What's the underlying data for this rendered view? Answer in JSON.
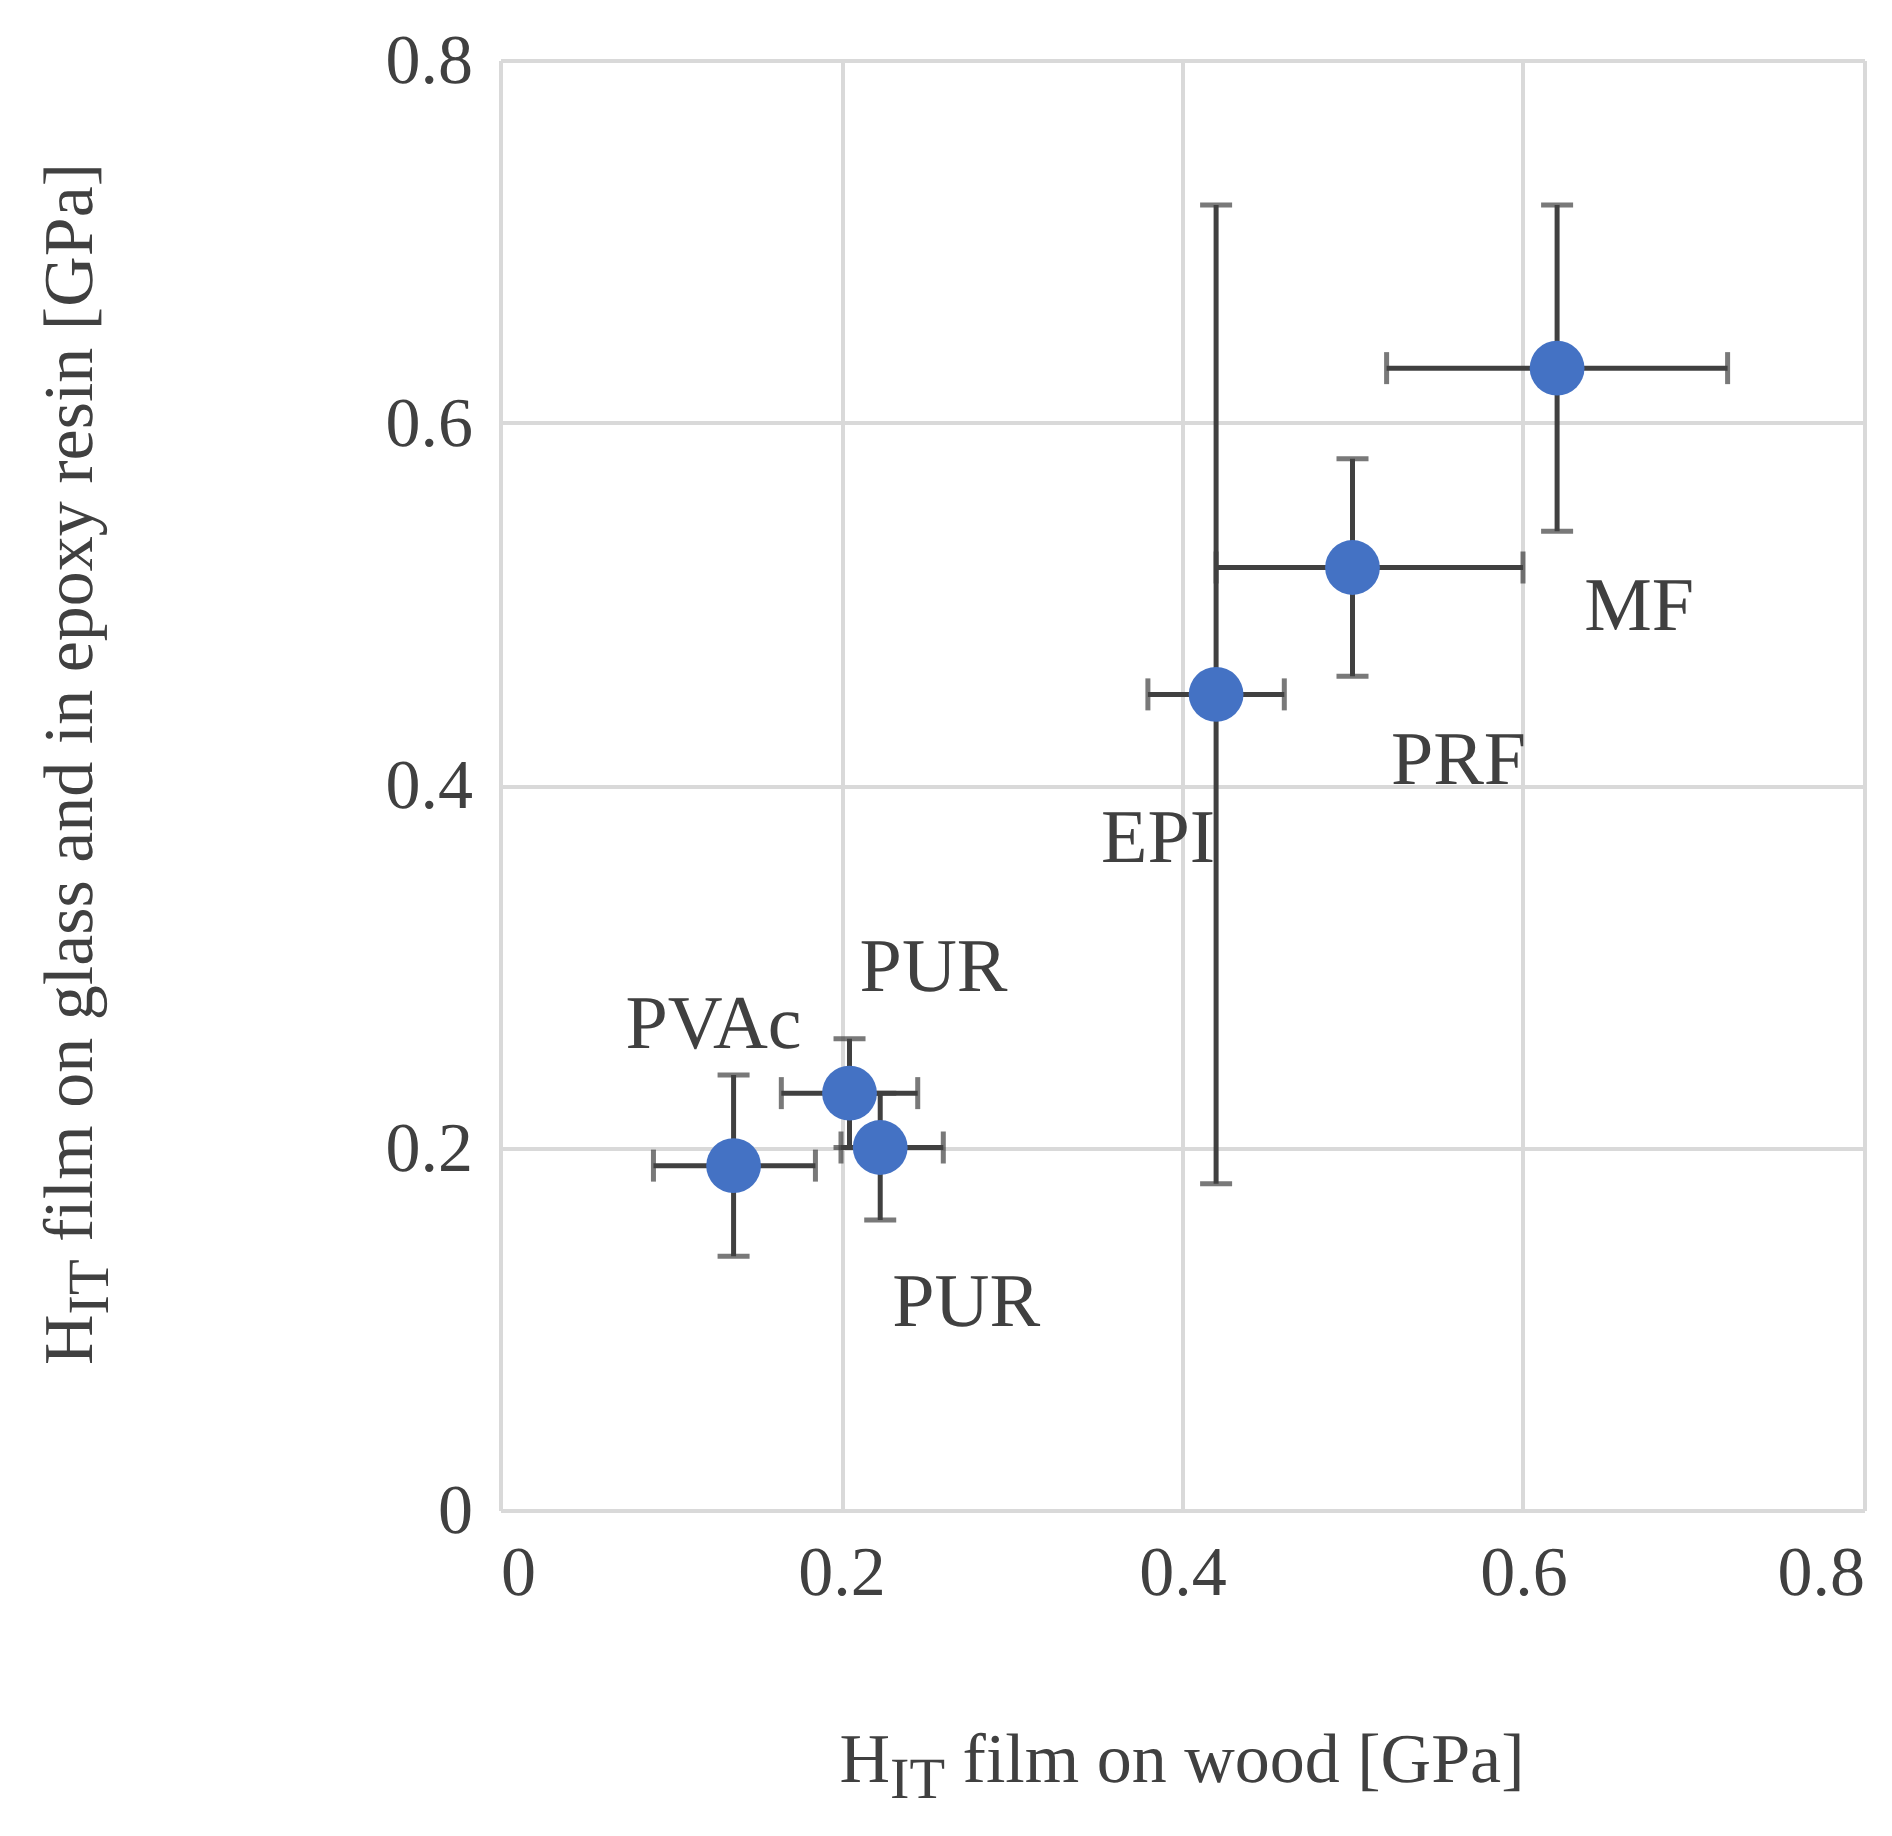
{
  "chart_data": {
    "type": "scatter",
    "xlabel": "H$_{IT}$ film on wood [GPa]",
    "ylabel": "H$_{IT}$ film on glass and in epoxy resin [GPa]",
    "xlim": [
      0,
      0.8
    ],
    "ylim": [
      0,
      0.8
    ],
    "xticks": [
      0,
      0.2,
      0.4,
      0.6,
      0.8
    ],
    "yticks": [
      0,
      0.2,
      0.4,
      0.6,
      0.8
    ],
    "grid": true,
    "marker": "circle",
    "series": [
      {
        "color": "#4472c4",
        "x": [
          0.62,
          0.5,
          0.42,
          0.205,
          0.223,
          0.137
        ],
        "values": [
          0.63,
          0.52,
          0.45,
          0.23,
          0.2,
          0.19
        ],
        "xerrors": [
          [
            0.52,
            0.72
          ],
          [
            0.42,
            0.6
          ],
          [
            0.38,
            0.46
          ],
          [
            0.165,
            0.245
          ],
          [
            0.2,
            0.26
          ],
          [
            0.09,
            0.185
          ]
        ],
        "errors": [
          [
            0.54,
            0.72
          ],
          [
            0.46,
            0.58
          ],
          [
            0.18,
            0.72
          ],
          [
            0.2,
            0.26
          ],
          [
            0.16,
            0.23
          ],
          [
            0.14,
            0.24
          ]
        ]
      }
    ],
    "annotations": [
      {
        "text": "MF",
        "x": 0.62,
        "y": 0.63
      },
      {
        "text": "PRF",
        "x": 0.5,
        "y": 0.52
      },
      {
        "text": "EPI",
        "x": 0.42,
        "y": 0.45
      },
      {
        "text": "PUR",
        "x": 0.205,
        "y": 0.23
      },
      {
        "text": "PUR",
        "x": 0.223,
        "y": 0.2
      },
      {
        "text": "PVAc",
        "x": 0.137,
        "y": 0.19
      }
    ]
  }
}
